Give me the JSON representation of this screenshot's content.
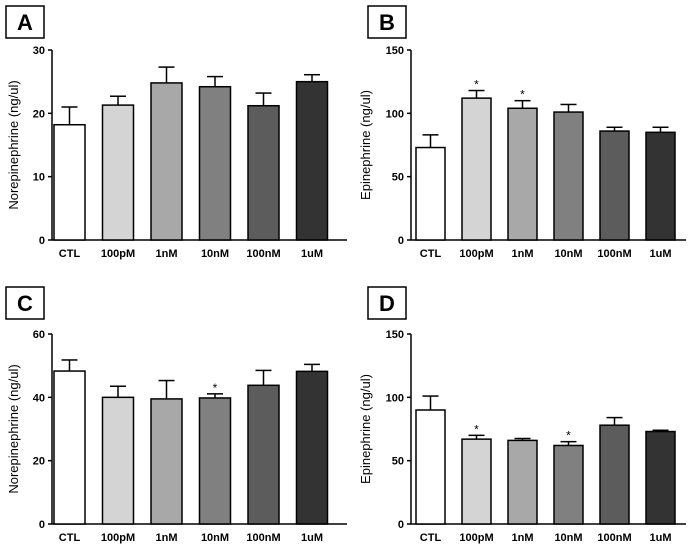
{
  "chart_data": [
    {
      "panel": "A",
      "type": "bar",
      "categories": [
        "CTL",
        "100pM",
        "1nM",
        "10nM",
        "100nM",
        "1uM"
      ],
      "values": [
        18.2,
        21.3,
        24.8,
        24.2,
        21.2,
        25.0
      ],
      "errors": [
        2.8,
        1.4,
        2.5,
        1.6,
        2.0,
        1.1
      ],
      "significance": [
        "",
        "",
        "",
        "",
        "",
        ""
      ],
      "ylabel": "Norepinephrine (ng/ul)",
      "ylim": [
        0,
        30
      ],
      "yticks": [
        0,
        10,
        20,
        30
      ],
      "colors": [
        "#ffffff",
        "#d4d4d4",
        "#a8a8a8",
        "#808080",
        "#5c5c5c",
        "#333333"
      ]
    },
    {
      "panel": "B",
      "type": "bar",
      "categories": [
        "CTL",
        "100pM",
        "1nM",
        "10nM",
        "100nM",
        "1uM"
      ],
      "values": [
        73,
        112,
        104,
        101,
        86,
        85
      ],
      "errors": [
        10,
        6,
        6,
        6,
        3,
        4
      ],
      "significance": [
        "",
        "*",
        "*",
        "",
        "",
        ""
      ],
      "ylabel": "Epinephrine (ng/ul)",
      "ylim": [
        0,
        150
      ],
      "yticks": [
        0,
        50,
        100,
        150
      ],
      "colors": [
        "#ffffff",
        "#d4d4d4",
        "#a8a8a8",
        "#808080",
        "#5c5c5c",
        "#333333"
      ]
    },
    {
      "panel": "C",
      "type": "bar",
      "categories": [
        "CTL",
        "100pM",
        "1nM",
        "10nM",
        "100nM",
        "1uM"
      ],
      "values": [
        48.3,
        40.0,
        39.5,
        39.8,
        43.8,
        48.2
      ],
      "errors": [
        3.5,
        3.5,
        5.8,
        1.3,
        4.7,
        2.2
      ],
      "significance": [
        "",
        "",
        "",
        "*",
        "",
        ""
      ],
      "ylabel": "Norepinephrine (ng/ul)",
      "ylim": [
        0,
        60
      ],
      "yticks": [
        0,
        20,
        40,
        60
      ],
      "colors": [
        "#ffffff",
        "#d4d4d4",
        "#a8a8a8",
        "#808080",
        "#5c5c5c",
        "#333333"
      ]
    },
    {
      "panel": "D",
      "type": "bar",
      "categories": [
        "CTL",
        "100pM",
        "1nM",
        "10nM",
        "100nM",
        "1uM"
      ],
      "values": [
        90,
        67,
        66,
        62,
        78,
        73
      ],
      "errors": [
        11,
        3,
        1.5,
        3,
        6,
        1
      ],
      "significance": [
        "",
        "*",
        "",
        "*",
        "",
        ""
      ],
      "ylabel": "Epinephrine (ng/ul)",
      "ylim": [
        0,
        150
      ],
      "yticks": [
        0,
        50,
        100,
        150
      ],
      "colors": [
        "#ffffff",
        "#d4d4d4",
        "#a8a8a8",
        "#808080",
        "#5c5c5c",
        "#333333"
      ]
    }
  ]
}
